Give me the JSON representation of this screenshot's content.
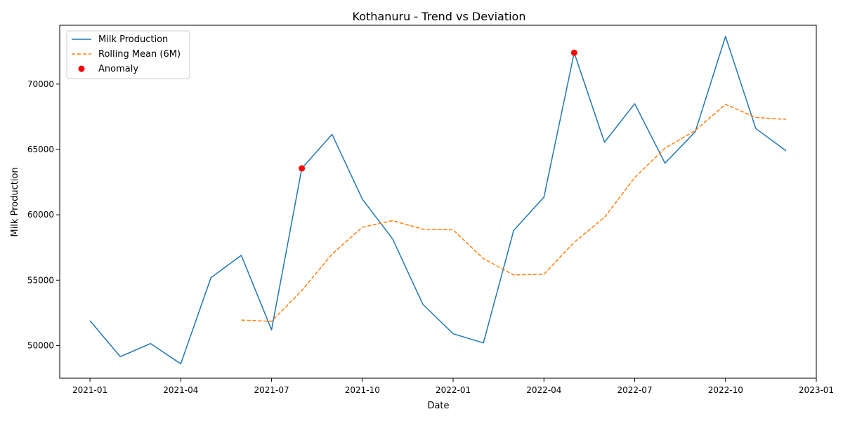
{
  "chart_data": {
    "type": "line",
    "title": "Kothanuru - Trend vs Deviation",
    "xlabel": "Date",
    "ylabel": "Milk Production",
    "xlim": [
      "2020-12",
      "2023-01"
    ],
    "ylim": [
      47500,
      74500
    ],
    "grid": false,
    "legend_position": "top-left",
    "x_ticks": [
      "2021-01",
      "2021-04",
      "2021-07",
      "2021-10",
      "2022-01",
      "2022-04",
      "2022-07",
      "2022-10",
      "2023-01"
    ],
    "y_ticks": [
      50000,
      55000,
      60000,
      65000,
      70000
    ],
    "x": [
      "2021-01",
      "2021-02",
      "2021-03",
      "2021-04",
      "2021-05",
      "2021-06",
      "2021-07",
      "2021-08",
      "2021-09",
      "2021-10",
      "2021-11",
      "2021-12",
      "2022-01",
      "2022-02",
      "2022-03",
      "2022-04",
      "2022-05",
      "2022-06",
      "2022-07",
      "2022-08",
      "2022-09",
      "2022-10",
      "2022-11",
      "2022-12"
    ],
    "series": [
      {
        "name": "Milk Production",
        "style": "solid",
        "color": "#1f77b4",
        "values": [
          51900,
          49150,
          50150,
          48600,
          55200,
          56900,
          51200,
          63550,
          66150,
          61200,
          58150,
          53150,
          50900,
          50200,
          58800,
          61350,
          72400,
          65550,
          68500,
          63950,
          66350,
          73650,
          66600,
          64900
        ]
      },
      {
        "name": "Rolling Mean (6M)",
        "style": "dashed",
        "color": "#ff7f0e",
        "values": [
          null,
          null,
          null,
          null,
          null,
          51950,
          51850,
          54200,
          57000,
          59050,
          59550,
          58900,
          58850,
          56650,
          55400,
          55450,
          57900,
          59800,
          62850,
          65100,
          66450,
          68450,
          67450,
          67300
        ]
      }
    ],
    "anomalies": {
      "name": "Anomaly",
      "color": "#ff0000",
      "points": [
        {
          "x": "2021-08",
          "y": 63550
        },
        {
          "x": "2022-05",
          "y": 72400
        }
      ]
    }
  }
}
